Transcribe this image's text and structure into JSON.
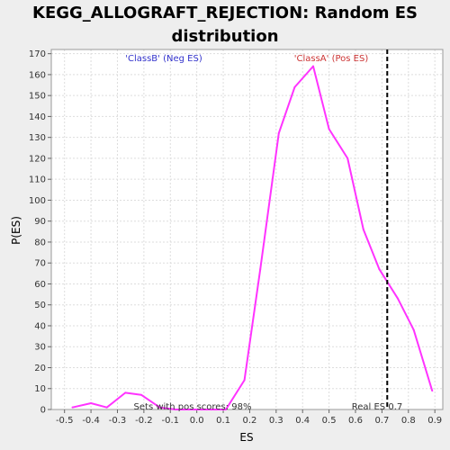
{
  "chart_data": {
    "type": "line",
    "title": [
      "KEGG_ALLOGRAFT_REJECTION: Random ES",
      "distribution"
    ],
    "xlabel": "ES",
    "ylabel": "P(ES)",
    "xlim": [
      -0.55,
      0.93
    ],
    "ylim": [
      0,
      172
    ],
    "xticks": [
      -0.5,
      -0.4,
      -0.3,
      -0.2,
      -0.1,
      0.0,
      0.1,
      0.2,
      0.3,
      0.4,
      0.5,
      0.6,
      0.7,
      0.8,
      0.9
    ],
    "xtick_labels": [
      "-0.5",
      "-0.4",
      "-0.3",
      "-0.2",
      "-0.1",
      "0.0",
      "0.1",
      "0.2",
      "0.3",
      "0.4",
      "0.5",
      "0.6",
      "0.7",
      "0.8",
      "0.9"
    ],
    "yticks": [
      0,
      10,
      20,
      30,
      40,
      50,
      60,
      70,
      80,
      90,
      100,
      110,
      120,
      130,
      140,
      150,
      160,
      170
    ],
    "ytick_labels": [
      "0",
      "10",
      "20",
      "30",
      "40",
      "50",
      "60",
      "70",
      "80",
      "90",
      "100",
      "110",
      "120",
      "130",
      "140",
      "150",
      "160",
      "170"
    ],
    "grid": true,
    "series": [
      {
        "color": "#ff33ff",
        "x": [
          -0.47,
          -0.4,
          -0.34,
          -0.27,
          -0.21,
          -0.14,
          -0.08,
          -0.01,
          0.05,
          0.11,
          0.18,
          0.24,
          0.31,
          0.37,
          0.44,
          0.5,
          0.57,
          0.63,
          0.69,
          0.76,
          0.82,
          0.89
        ],
        "y": [
          1,
          3,
          1,
          8,
          7,
          1,
          0,
          0,
          0,
          0,
          14,
          67,
          132,
          154,
          164,
          134,
          120,
          86,
          67,
          53,
          38,
          9
        ]
      }
    ],
    "vline": {
      "x": 0.72,
      "label": "Real ES 0.7",
      "color": "#000000"
    },
    "annotations": {
      "neg_label": "'ClassB' (Neg ES)",
      "pos_label": "'ClassA' (Pos ES)",
      "neg_color": "#3333cc",
      "pos_color": "#cc3333",
      "pos_scores": "Sets with pos scores: 98%"
    }
  }
}
